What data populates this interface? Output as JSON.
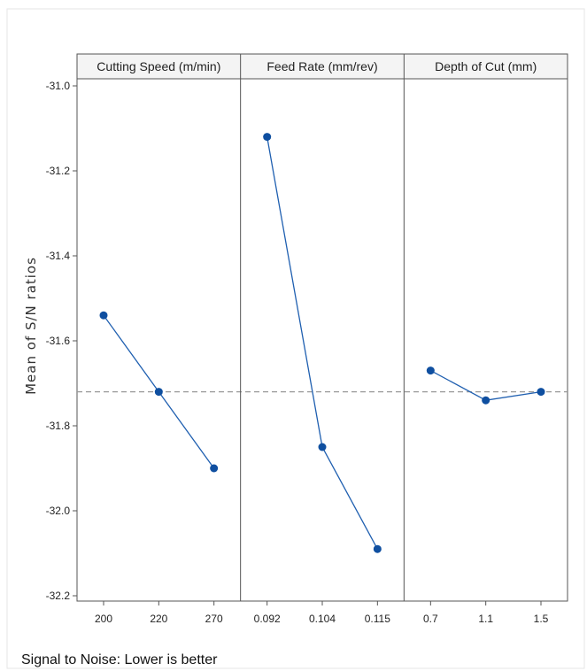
{
  "chart_data": {
    "type": "line",
    "ylabel": "Mean of S/N ratios",
    "ylim": [
      -32.2,
      -31.0
    ],
    "yticks": [
      "-31.0",
      "-31.2",
      "-31.4",
      "-31.6",
      "-31.8",
      "-32.0",
      "-32.2"
    ],
    "grid": false,
    "reference_line": {
      "value": -31.72,
      "style": "dashed",
      "color": "#999999"
    },
    "series_color": "#1f5fb0",
    "point_color": "#0f4fa0",
    "panels": [
      {
        "title": "Cutting Speed (m/min)",
        "categories": [
          "200",
          "220",
          "270"
        ],
        "values": [
          -31.54,
          -31.72,
          -31.9
        ]
      },
      {
        "title": "Feed Rate (mm/rev)",
        "categories": [
          "0.092",
          "0.104",
          "0.115"
        ],
        "values": [
          -31.12,
          -31.85,
          -32.09
        ]
      },
      {
        "title": "Depth of Cut (mm)",
        "categories": [
          "0.7",
          "1.1",
          "1.5"
        ],
        "values": [
          -31.67,
          -31.74,
          -31.72
        ]
      }
    ],
    "footnote": "Signal to Noise: Lower is better"
  }
}
